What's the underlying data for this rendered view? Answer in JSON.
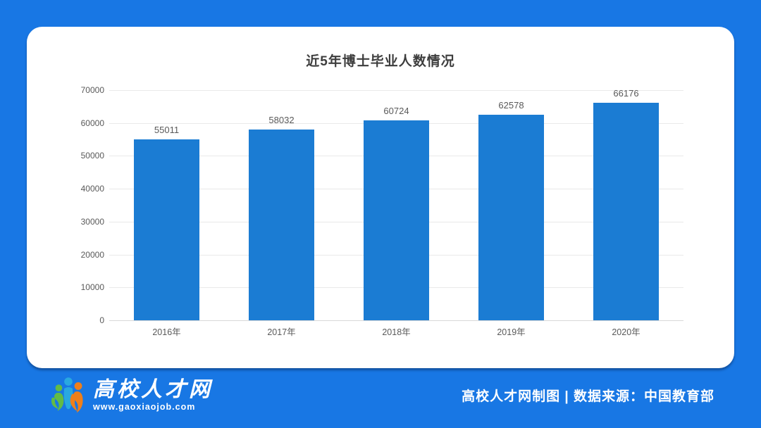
{
  "page": {
    "background_color": "#1877E4",
    "card_color": "#FFFFFF"
  },
  "chart_data": {
    "type": "bar",
    "title": "近5年博士毕业人数情况",
    "categories": [
      "2016年",
      "2017年",
      "2018年",
      "2019年",
      "2020年"
    ],
    "values": [
      55011,
      58032,
      60724,
      62578,
      66176
    ],
    "xlabel": "",
    "ylabel": "",
    "ylim": [
      0,
      70000
    ],
    "ytick_step": 10000,
    "grid": true,
    "legend": "none",
    "value_labels": true,
    "bar_color": "#1B7CD3"
  },
  "footer": {
    "logo": {
      "brand_name": "高校人才网",
      "website": "www.gaoxiaojob.com",
      "icon_colors": {
        "left_person": "#62BB46",
        "middle_person": "#29A8E0",
        "right_person": "#EF7F1A"
      }
    },
    "credit": "高校人才网制图 | 数据来源：中国教育部"
  }
}
